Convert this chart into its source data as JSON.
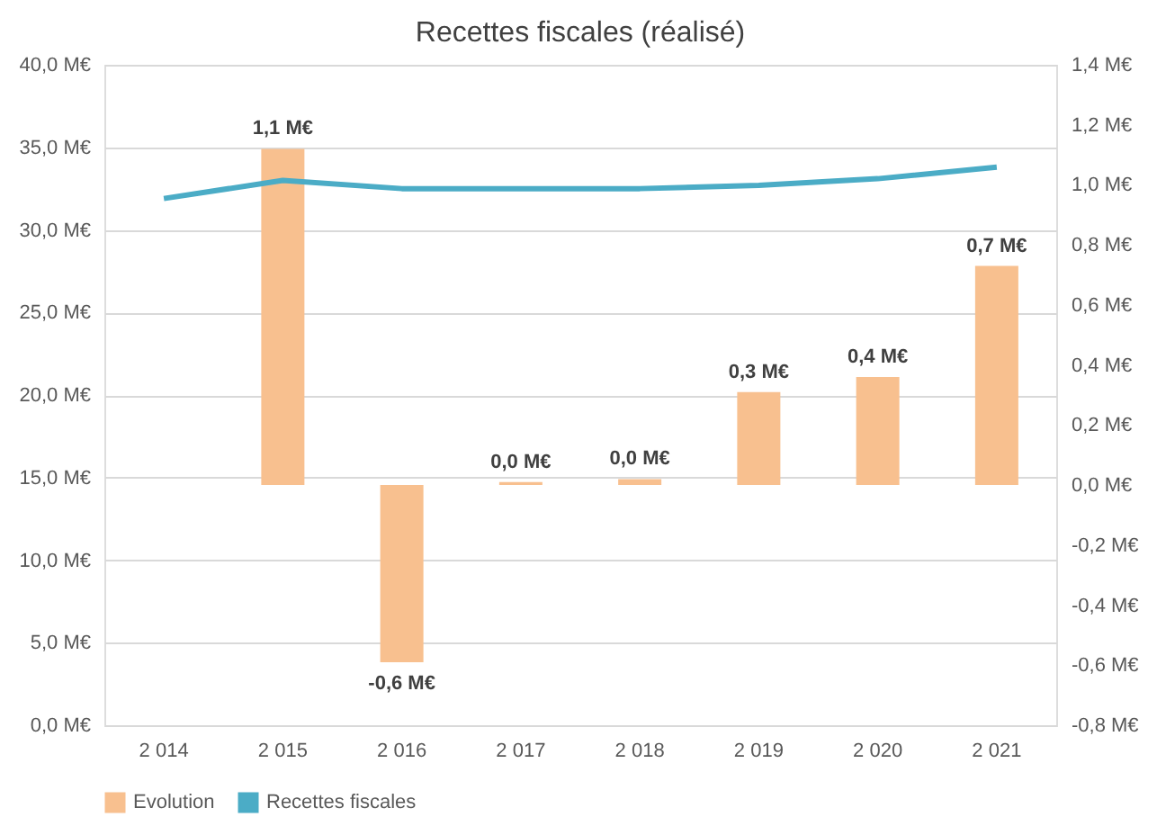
{
  "chart_data": {
    "type": "bar",
    "title": "Recettes fiscales (réalisé)",
    "categories": [
      "2 014",
      "2 015",
      "2 016",
      "2 017",
      "2 018",
      "2 019",
      "2 020",
      "2 021"
    ],
    "series": [
      {
        "name": "Evolution",
        "axis": "y2",
        "color": "#f8c08f",
        "values": [
          null,
          1.12,
          -0.59,
          0.01,
          0.02,
          0.31,
          0.36,
          0.73
        ],
        "value_labels": [
          null,
          "1,1 M€",
          "-0,6 M€",
          "0,0 M€",
          "0,0 M€",
          "0,3 M€",
          "0,4 M€",
          "0,7 M€"
        ]
      },
      {
        "name": "Recettes fiscales",
        "type": "line",
        "color": "#4bacc6",
        "values": [
          31.9,
          33.0,
          32.5,
          32.5,
          32.5,
          32.7,
          33.1,
          33.8
        ]
      }
    ],
    "ylim": [
      0,
      40
    ],
    "yticks": [
      {
        "value": 0,
        "label": "0,0 M€"
      },
      {
        "value": 5,
        "label": "5,0 M€"
      },
      {
        "value": 10,
        "label": "10,0 M€"
      },
      {
        "value": 15,
        "label": "15,0 M€"
      },
      {
        "value": 20,
        "label": "20,0 M€"
      },
      {
        "value": 25,
        "label": "25,0 M€"
      },
      {
        "value": 30,
        "label": "30,0 M€"
      },
      {
        "value": 35,
        "label": "35,0 M€"
      },
      {
        "value": 40,
        "label": "40,0 M€"
      }
    ],
    "y2lim": [
      -0.8,
      1.4
    ],
    "y2ticks": [
      {
        "value": -0.8,
        "label": "-0,8 M€"
      },
      {
        "value": -0.6,
        "label": "-0,6 M€"
      },
      {
        "value": -0.4,
        "label": "-0,4 M€"
      },
      {
        "value": -0.2,
        "label": "-0,2 M€"
      },
      {
        "value": 0,
        "label": "0,0 M€"
      },
      {
        "value": 0.2,
        "label": "0,2 M€"
      },
      {
        "value": 0.4,
        "label": "0,4 M€"
      },
      {
        "value": 0.6,
        "label": "0,6 M€"
      },
      {
        "value": 0.8,
        "label": "0,8 M€"
      },
      {
        "value": 1,
        "label": "1,0 M€"
      },
      {
        "value": 1.2,
        "label": "1,2 M€"
      },
      {
        "value": 1.4,
        "label": "1,4 M€"
      }
    ],
    "grid": "y",
    "legend": "bottom"
  }
}
